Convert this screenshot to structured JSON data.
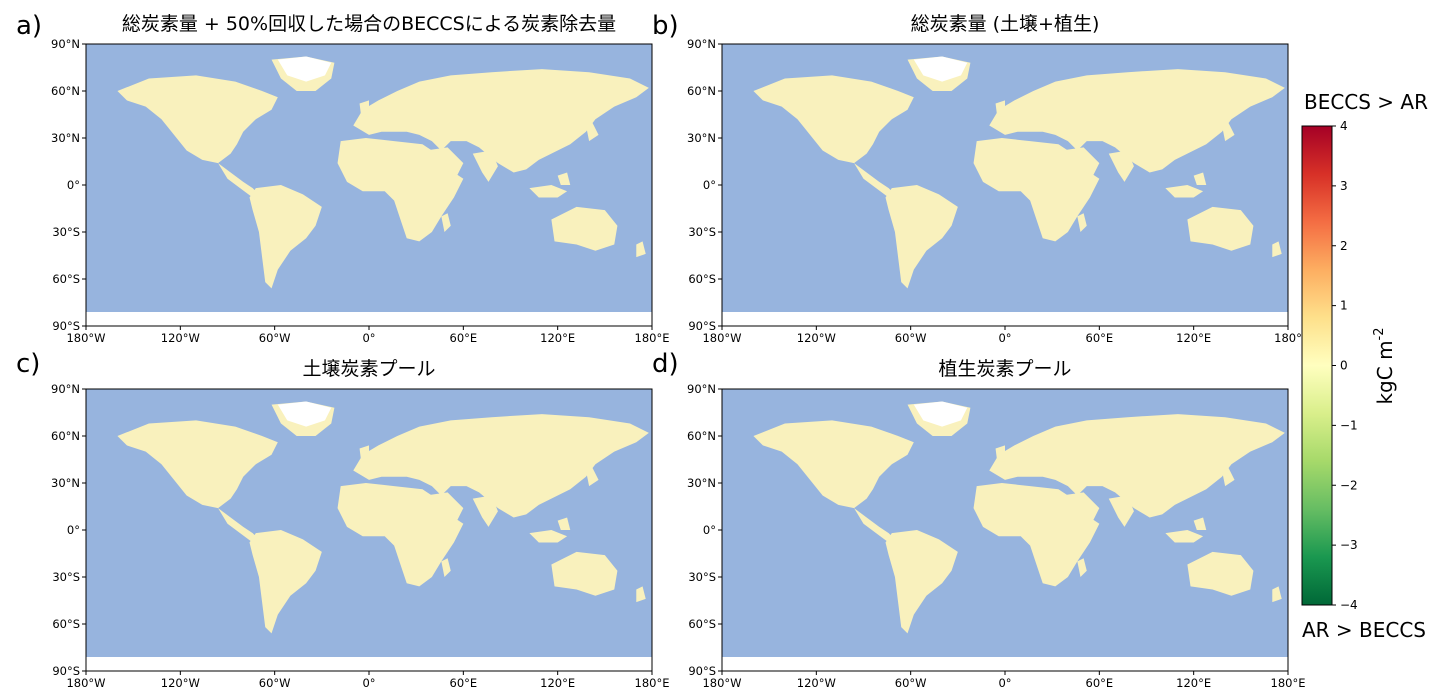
{
  "panels": [
    {
      "letter": "a)",
      "title": "総炭素量 + 50%回収した場合のBECCSによる炭素除去量"
    },
    {
      "letter": "b)",
      "title": "総炭素量 (土壌+植生)"
    },
    {
      "letter": "c)",
      "title": "土壌炭素プール"
    },
    {
      "letter": "d)",
      "title": "植生炭素プール"
    }
  ],
  "axes": {
    "lat_labels": [
      "90°N",
      "60°N",
      "30°N",
      "0°",
      "30°S",
      "60°S",
      "90°S"
    ],
    "lon_labels": [
      "180°W",
      "120°W",
      "60°W",
      "0°",
      "60°E",
      "120°E",
      "180°E"
    ],
    "lon_labels_panel_b": [
      "180°W",
      "120°W",
      "60°W",
      "0°",
      "60°E",
      "120°E",
      "180°"
    ]
  },
  "colorbar": {
    "top_label": "BECCS > AR",
    "bottom_label": "AR > BECCS",
    "title": "kgC m",
    "title_sup": "-2",
    "ticks": [
      "4",
      "3",
      "2",
      "1",
      "0",
      "−1",
      "−2",
      "−3",
      "−4"
    ],
    "range": [
      -4,
      4
    ],
    "colors": [
      "#006837",
      "#1a9850",
      "#66bd63",
      "#a6d96a",
      "#d9ef8b",
      "#ffffbf",
      "#fee08b",
      "#fdae61",
      "#f46d43",
      "#d73027",
      "#a50026"
    ]
  },
  "colors": {
    "ocean": "#97b4de",
    "land_neutral": "#f9f1bd",
    "positive": "#a50026",
    "negative": "#006837"
  }
}
